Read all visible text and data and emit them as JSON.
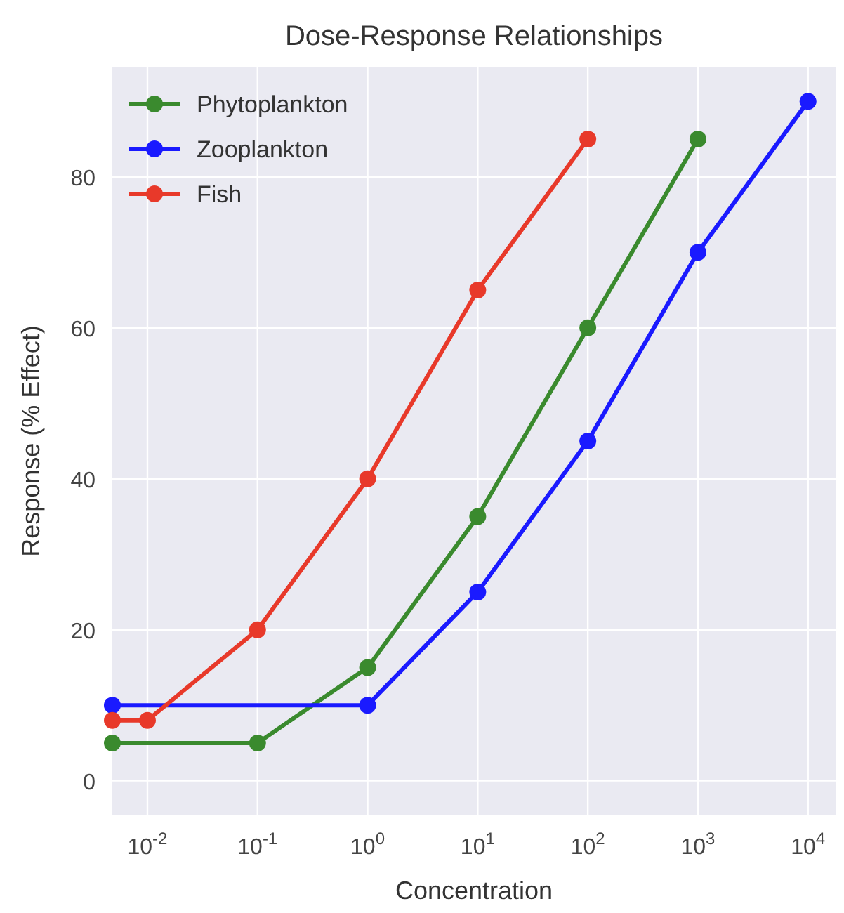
{
  "chart_data": {
    "type": "line",
    "title": "Dose-Response Relationships",
    "xlabel": "Concentration",
    "ylabel": "Response (% Effect)",
    "log": "x",
    "xlim": [
      0.0048,
      17800
    ],
    "ylim": [
      -4.5,
      94.5
    ],
    "xticks": [
      {
        "value": 0.01,
        "label": "10$^{-2}$"
      },
      {
        "value": 0.1,
        "label": "10$^{-1}$"
      },
      {
        "value": 1,
        "label": "10$^{0}$"
      },
      {
        "value": 10,
        "label": "10$^{1}$"
      },
      {
        "value": 100,
        "label": "10$^{2}$"
      },
      {
        "value": 1000,
        "label": "10$^{3}$"
      },
      {
        "value": 10000,
        "label": "10$^{4}$"
      }
    ],
    "yticks": [
      0,
      20,
      40,
      60,
      80
    ],
    "grid": true,
    "legend": "top left",
    "marker": "circle",
    "line_style": "solid",
    "series": [
      {
        "name": "Phytoplankton",
        "color": "#3a8a2e",
        "x": [
          0.0048,
          0.1,
          1,
          10,
          100,
          1000
        ],
        "values": [
          5,
          5,
          15,
          35,
          60,
          85
        ]
      },
      {
        "name": "Zooplankton",
        "color": "#1a1aff",
        "x": [
          0.0048,
          1,
          10,
          100,
          1000,
          10000
        ],
        "values": [
          10,
          10,
          25,
          45,
          70,
          90
        ]
      },
      {
        "name": "Fish",
        "color": "#e8392a",
        "x": [
          0.0048,
          0.01,
          0.1,
          1,
          10,
          100
        ],
        "values": [
          8,
          8,
          20,
          40,
          65,
          85
        ]
      }
    ]
  }
}
